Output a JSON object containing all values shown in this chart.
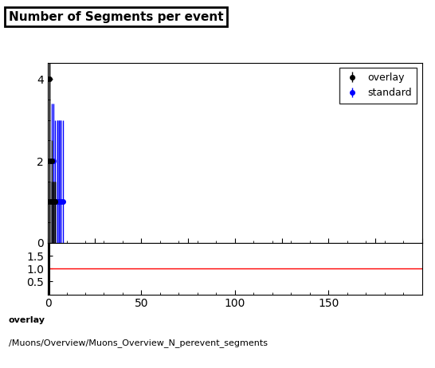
{
  "title": "Number of Segments per event",
  "bottom_text_line1": "overlay",
  "bottom_text_line2": "/Muons/Overview/Muons_Overview_N_perevent_segments",
  "main_xlim": [
    0,
    200
  ],
  "main_ylim": [
    0,
    4.4
  ],
  "main_yticks": [
    0,
    2,
    4
  ],
  "ratio_xlim": [
    0,
    200
  ],
  "ratio_ylim": [
    0,
    2.0
  ],
  "ratio_yticks": [
    0.5,
    1.0,
    1.5
  ],
  "overlay_color": "#000000",
  "standard_color": "#0000ff",
  "ratio_line_color": "#ff0000",
  "marker_size": 4,
  "line_width": 1.0,
  "overlay_pts": {
    "x": [
      1,
      1,
      1,
      2,
      2,
      2,
      3,
      3,
      3,
      4,
      4
    ],
    "y": [
      4.0,
      2.0,
      1.0,
      2.0,
      1.0,
      1.0,
      1.0,
      1.0,
      1.0,
      1.0,
      1.0
    ],
    "yerr_low": [
      4.0,
      2.0,
      1.0,
      2.0,
      1.0,
      1.0,
      1.0,
      1.0,
      1.0,
      1.0,
      1.0
    ],
    "yerr_high": [
      0.4,
      2.4,
      0.5,
      0.5,
      0.5,
      0.5,
      0.5,
      0.5,
      0.5,
      0.5,
      0.5
    ]
  },
  "standard_pts": {
    "x": [
      2,
      3,
      4,
      5,
      5,
      6,
      6,
      7,
      7,
      8
    ],
    "y": [
      2.0,
      2.0,
      1.0,
      1.0,
      1.0,
      1.0,
      1.0,
      1.0,
      1.0,
      1.0
    ],
    "yerr_low": [
      2.0,
      2.0,
      1.0,
      1.0,
      1.0,
      1.0,
      1.0,
      1.0,
      1.0,
      1.0
    ],
    "yerr_high": [
      1.4,
      1.4,
      2.0,
      2.0,
      2.0,
      2.0,
      2.0,
      2.0,
      2.0,
      2.0
    ]
  }
}
